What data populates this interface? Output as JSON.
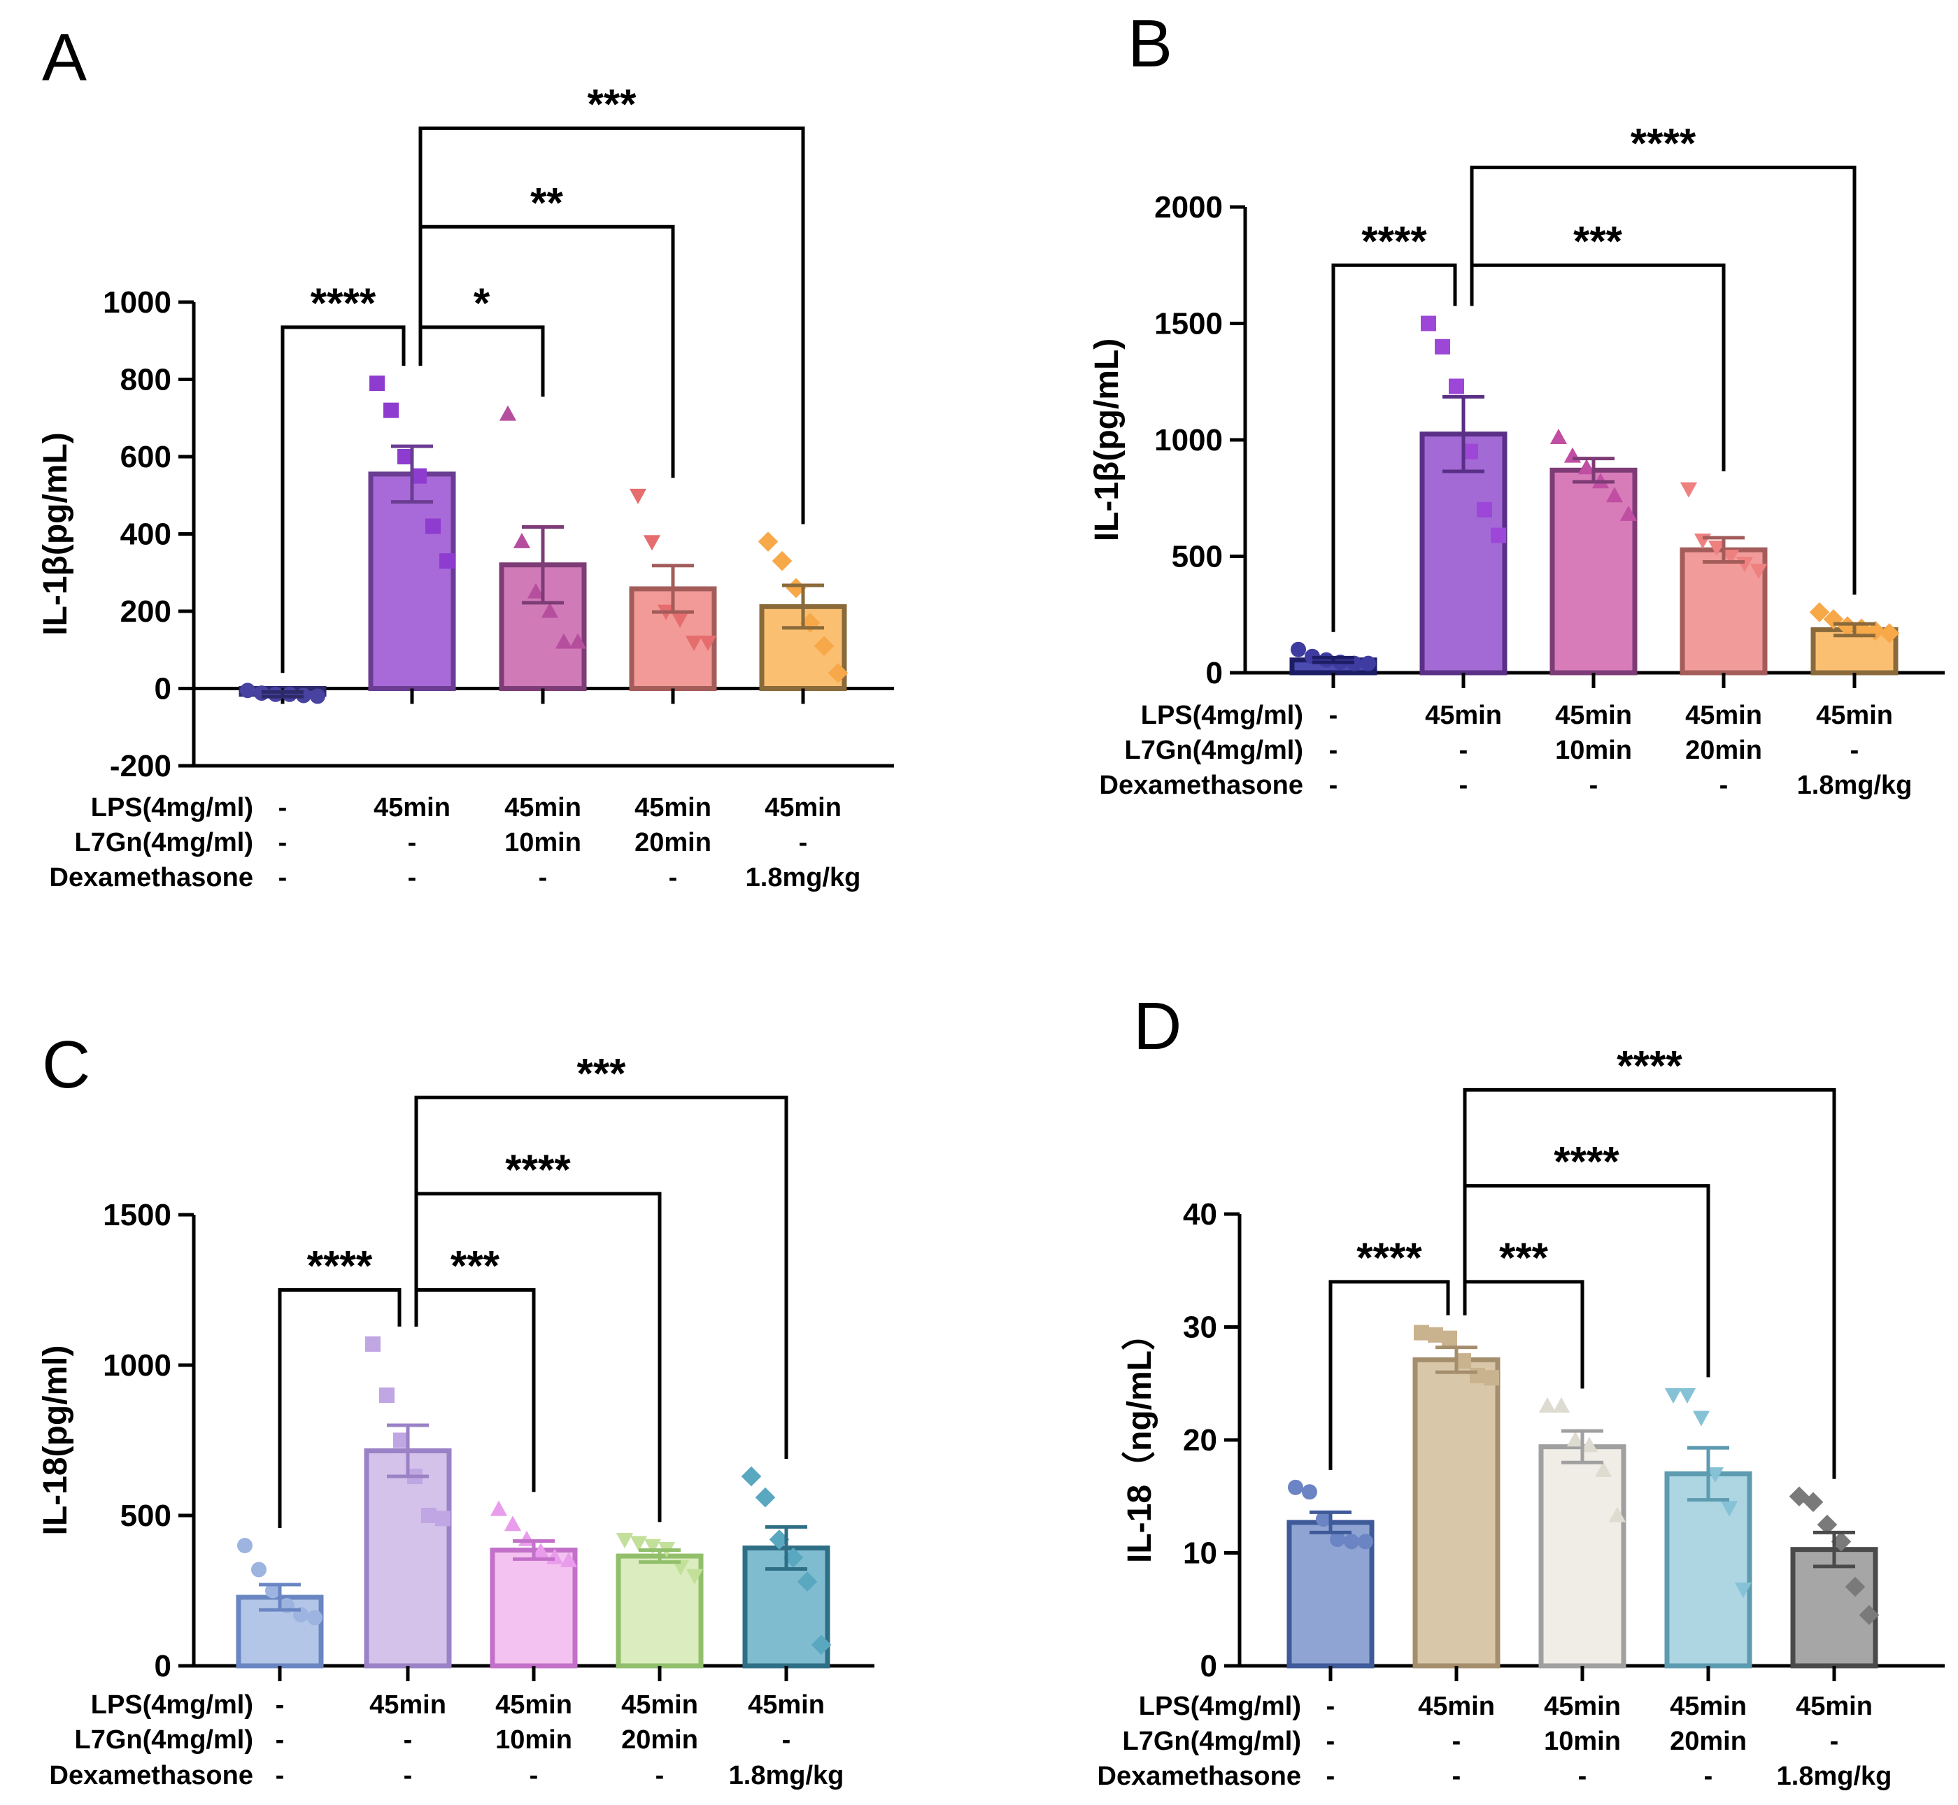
{
  "chart_data": [
    {
      "panel": "A",
      "type": "bar",
      "categories": [
        "-",
        "45min",
        "45min 10min",
        "45min 20min",
        "45min 1.8mg/kg"
      ],
      "values": [
        -15,
        555,
        320,
        258,
        212
      ],
      "errors": [
        6,
        72,
        98,
        60,
        55
      ],
      "points": [
        [
          -5,
          -12,
          -15,
          -15,
          -18,
          -20
        ],
        [
          790,
          720,
          600,
          550,
          420,
          330
        ],
        [
          710,
          380,
          250,
          200,
          120,
          120
        ],
        [
          500,
          380,
          200,
          180,
          120,
          120
        ],
        [
          380,
          330,
          260,
          170,
          110,
          40
        ]
      ],
      "colors": [
        "#5b55b0",
        "#a86ad8",
        "#d07ab8",
        "#f29a97",
        "#fbbf72"
      ],
      "edge_colors": [
        "#2d2a6a",
        "#6a3c92",
        "#7d3c76",
        "#a35c5a",
        "#8a6a3a"
      ],
      "point_colors": [
        "#4842a0",
        "#8e3cd0",
        "#b64e9e",
        "#e56d6e",
        "#f7a848"
      ],
      "markers": [
        "circle",
        "square",
        "triangle",
        "triangle-down",
        "diamond"
      ],
      "ylabel": "IL-1β(pg/mL)",
      "ylim": [
        -200,
        1000
      ],
      "yticks": [
        "-200",
        "0",
        "200",
        "400",
        "600",
        "800",
        "1000"
      ],
      "significance": [
        {
          "from": 0,
          "to": 1,
          "label": "****",
          "level": 935
        },
        {
          "from": 1,
          "to": 2,
          "label": "*",
          "level": 935
        },
        {
          "from": 1,
          "to": 3,
          "label": "**",
          "level": 1195
        },
        {
          "from": 1,
          "to": 4,
          "label": "***",
          "level": 1450
        }
      ]
    },
    {
      "panel": "B",
      "type": "bar",
      "categories": [
        "-",
        "45min",
        "45min 10min",
        "45min 20min",
        "45min 1.8mg/kg"
      ],
      "values": [
        55,
        1025,
        870,
        528,
        185
      ],
      "errors": [
        10,
        160,
        50,
        52,
        25
      ],
      "points": [
        [
          100,
          70,
          55,
          45,
          40,
          40
        ],
        [
          1500,
          1400,
          1230,
          950,
          700,
          590
        ],
        [
          1010,
          930,
          880,
          820,
          760,
          680
        ],
        [
          790,
          570,
          540,
          500,
          470,
          440
        ],
        [
          260,
          230,
          200,
          190,
          180,
          170
        ]
      ],
      "colors": [
        "#4c4bb0",
        "#a36ad6",
        "#d77cb8",
        "#f19c9a",
        "#fbbf72"
      ],
      "edge_colors": [
        "#1d1d66",
        "#5a2f86",
        "#7d3c76",
        "#a35c5a",
        "#8a6a3a"
      ],
      "point_colors": [
        "#3e3ca0",
        "#9d47d8",
        "#c04ea2",
        "#ef8080",
        "#f7a848"
      ],
      "markers": [
        "circle",
        "square",
        "triangle",
        "triangle-down",
        "diamond"
      ],
      "ylabel": "IL-1β(pg/mL)",
      "ylim": [
        0,
        2000
      ],
      "yticks": [
        "0",
        "500",
        "1000",
        "1500",
        "2000"
      ],
      "significance": [
        {
          "from": 0,
          "to": 1,
          "label": "****",
          "level": 1750
        },
        {
          "from": 1,
          "to": 3,
          "label": "***",
          "level": 1750
        },
        {
          "from": 1,
          "to": 4,
          "label": "****",
          "level": 2170
        }
      ]
    },
    {
      "panel": "C",
      "type": "bar",
      "categories": [
        "-",
        "45min",
        "45min 10min",
        "45min 20min",
        "45min 1.8mg/kg"
      ],
      "values": [
        228,
        715,
        385,
        365,
        392
      ],
      "errors": [
        42,
        85,
        30,
        20,
        70
      ],
      "points": [
        [
          400,
          320,
          250,
          200,
          170,
          160
        ],
        [
          1070,
          900,
          750,
          630,
          500,
          490
        ],
        [
          520,
          470,
          420,
          380,
          360,
          350
        ],
        [
          420,
          410,
          400,
          390,
          330,
          300
        ],
        [
          630,
          560,
          420,
          360,
          280,
          70
        ]
      ],
      "colors": [
        "#b4c6e8",
        "#d4c2ea",
        "#f4c2f0",
        "#dbedbf",
        "#7fbcd0"
      ],
      "edge_colors": [
        "#6a86c2",
        "#9b82c6",
        "#c370c9",
        "#92bf6b",
        "#2f6f86"
      ],
      "point_colors": [
        "#9db4e0",
        "#c0a6e2",
        "#e99cec",
        "#c3e09a",
        "#5aa7c0"
      ],
      "markers": [
        "circle",
        "square",
        "triangle",
        "triangle-down",
        "diamond"
      ],
      "ylabel": "IL-18(pg/ml)",
      "ylim": [
        0,
        1500
      ],
      "yticks": [
        "0",
        "500",
        "1000",
        "1500"
      ],
      "significance": [
        {
          "from": 0,
          "to": 1,
          "label": "****",
          "level": 1250
        },
        {
          "from": 1,
          "to": 2,
          "label": "***",
          "level": 1250
        },
        {
          "from": 1,
          "to": 3,
          "label": "****",
          "level": 1570
        },
        {
          "from": 1,
          "to": 4,
          "label": "***",
          "level": 1890
        }
      ]
    },
    {
      "panel": "D",
      "type": "bar",
      "categories": [
        "-",
        "45min",
        "45min 10min",
        "45min 20min",
        "45min 1.8mg/kg"
      ],
      "values": [
        12.7,
        27.1,
        19.4,
        17.0,
        10.3
      ],
      "errors": [
        0.9,
        1.1,
        1.4,
        2.3,
        1.5
      ],
      "points": [
        [
          15.8,
          15.4,
          13.0,
          11.2,
          11.0,
          11.0
        ],
        [
          29.5,
          29.3,
          29.0,
          27.0,
          25.7,
          25.5
        ],
        [
          23.0,
          23.0,
          20.0,
          19.5,
          17.3,
          13.3
        ],
        [
          24.0,
          24.0,
          22.0,
          17.0,
          14.0,
          6.8
        ],
        [
          15.0,
          14.5,
          12.5,
          11.0,
          7.0,
          4.5
        ]
      ],
      "colors": [
        "#8fa4d2",
        "#d8c7a8",
        "#efede6",
        "#add5e2",
        "#a6a6a6"
      ],
      "edge_colors": [
        "#3f5a99",
        "#a58e6c",
        "#a0a0a0",
        "#5c9bb0",
        "#4a4a4a"
      ],
      "point_colors": [
        "#6b84c4",
        "#c9b28e",
        "#dedbd0",
        "#86c2d6",
        "#7a7a7a"
      ],
      "markers": [
        "circle",
        "square",
        "triangle",
        "triangle-down",
        "diamond"
      ],
      "ylabel": "IL-18（ng/mL）",
      "ylim": [
        0,
        40
      ],
      "yticks": [
        "0",
        "10",
        "20",
        "30",
        "40"
      ],
      "significance": [
        {
          "from": 0,
          "to": 1,
          "label": "****",
          "level": 34.0
        },
        {
          "from": 1,
          "to": 2,
          "label": "***",
          "level": 34.0
        },
        {
          "from": 1,
          "to": 3,
          "label": "****",
          "level": 42.5
        },
        {
          "from": 1,
          "to": 4,
          "label": "****",
          "level": 51.0
        }
      ]
    }
  ],
  "conditions": {
    "row_labels": [
      "LPS(4mg/ml)",
      "L7Gn(4mg/ml)",
      "Dexamethasone"
    ],
    "cells": [
      [
        "-",
        "45min",
        "45min",
        "45min",
        "45min"
      ],
      [
        "-",
        "-",
        "10min",
        "20min",
        "-"
      ],
      [
        "-",
        "-",
        "-",
        "-",
        "1.8mg/kg"
      ]
    ]
  }
}
